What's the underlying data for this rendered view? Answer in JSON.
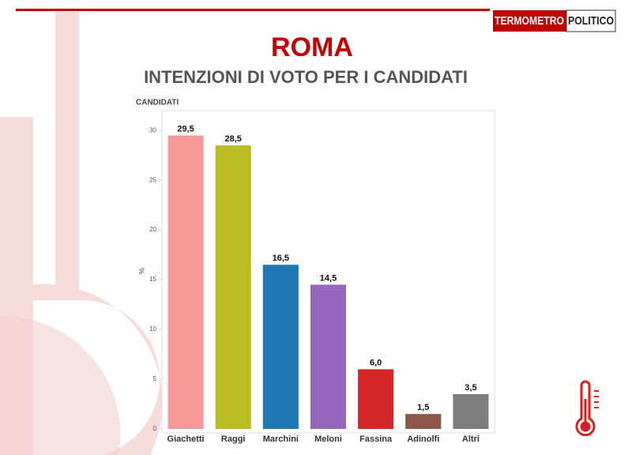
{
  "brand": {
    "left": "TERMOMETRO",
    "right": "POLITICO"
  },
  "chart_data": {
    "type": "bar",
    "title": "ROMA",
    "subtitle": "INTENZIONI DI VOTO PER I CANDIDATI",
    "legend_title": "CANDIDATI",
    "y_label": "%",
    "categories": [
      "Giachetti",
      "Raggi",
      "Marchini",
      "Meloni",
      "Fassina",
      "Adinolfi",
      "Altri"
    ],
    "values": [
      29.5,
      28.5,
      16.5,
      14.5,
      6.0,
      1.5,
      3.5
    ],
    "value_labels": [
      "29,5",
      "28,5",
      "16,5",
      "14,5",
      "6,0",
      "1,5",
      "3,5"
    ],
    "colors": [
      "#f59a99",
      "#bcbd22",
      "#1f77b4",
      "#9467bd",
      "#d62728",
      "#8c564b",
      "#7f7f7f"
    ],
    "ylim": [
      0,
      32
    ],
    "yticks": [
      0,
      5,
      10,
      15,
      20,
      25,
      30
    ],
    "grid": false
  }
}
